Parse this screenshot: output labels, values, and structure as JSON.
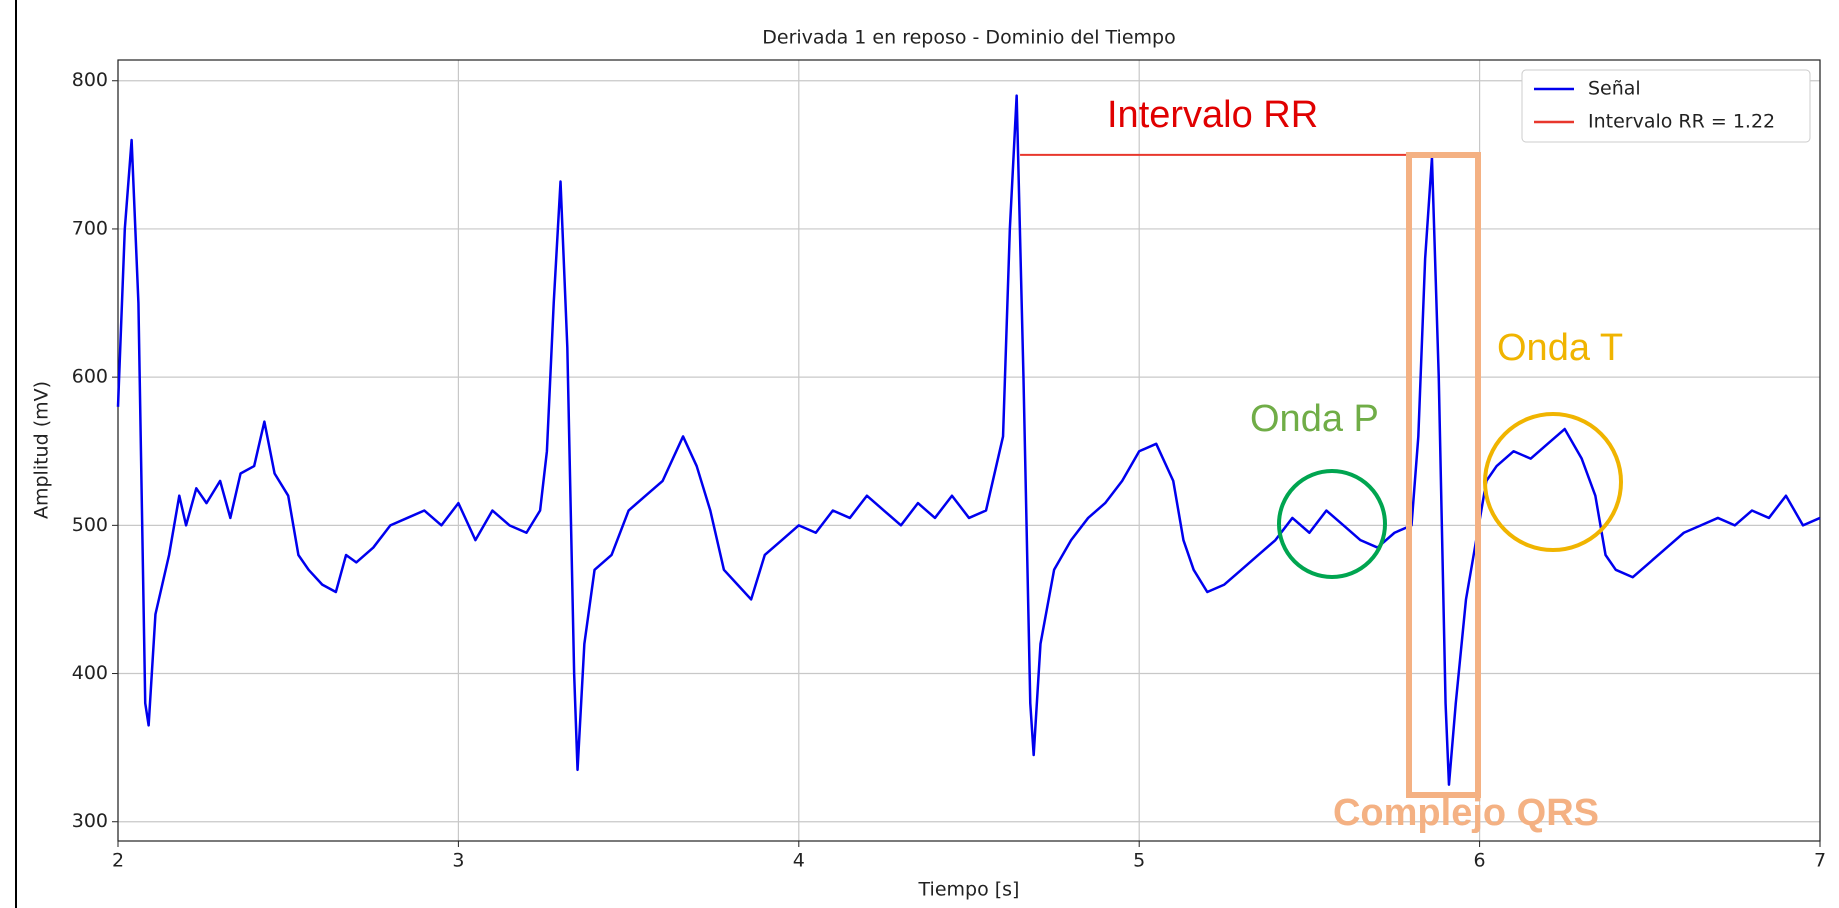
{
  "chart_data": {
    "type": "line",
    "title": "Derivada 1 en reposo - Dominio del Tiempo",
    "xlabel": "Tiempo [s]",
    "ylabel": "Amplitud (mV)",
    "xlim": [
      2,
      7
    ],
    "xticks": [
      2,
      3,
      4,
      5,
      6,
      7
    ],
    "ylim": [
      287,
      814
    ],
    "yticks": [
      300,
      400,
      500,
      600,
      700,
      800
    ],
    "grid": true,
    "legend": "upper right",
    "annotations": [
      "Intervalo RR",
      "Onda P",
      "Onda T",
      "Complejo QRS"
    ],
    "series": [
      {
        "name": "Señal",
        "color": "#0000ee",
        "x": [
          2.0,
          2.02,
          2.04,
          2.06,
          2.08,
          2.09,
          2.11,
          2.13,
          2.15,
          2.18,
          2.2,
          2.23,
          2.26,
          2.3,
          2.33,
          2.36,
          2.4,
          2.43,
          2.46,
          2.5,
          2.53,
          2.56,
          2.6,
          2.64,
          2.67,
          2.7,
          2.75,
          2.8,
          2.85,
          2.9,
          2.95,
          3.0,
          3.05,
          3.1,
          3.15,
          3.2,
          3.24,
          3.26,
          3.28,
          3.3,
          3.32,
          3.34,
          3.35,
          3.37,
          3.4,
          3.45,
          3.5,
          3.55,
          3.6,
          3.63,
          3.66,
          3.7,
          3.74,
          3.78,
          3.82,
          3.86,
          3.9,
          3.95,
          4.0,
          4.05,
          4.1,
          4.15,
          4.2,
          4.25,
          4.3,
          4.35,
          4.4,
          4.45,
          4.5,
          4.55,
          4.6,
          4.62,
          4.64,
          4.66,
          4.68,
          4.69,
          4.71,
          4.75,
          4.8,
          4.85,
          4.9,
          4.95,
          5.0,
          5.05,
          5.1,
          5.13,
          5.16,
          5.2,
          5.25,
          5.3,
          5.35,
          5.4,
          5.45,
          5.5,
          5.55,
          5.6,
          5.65,
          5.7,
          5.75,
          5.8,
          5.82,
          5.84,
          5.86,
          5.88,
          5.9,
          5.91,
          5.93,
          5.96,
          5.99,
          6.02,
          6.05,
          6.1,
          6.15,
          6.2,
          6.25,
          6.3,
          6.34,
          6.37,
          6.4,
          6.45,
          6.5,
          6.55,
          6.6,
          6.65,
          6.7,
          6.75,
          6.8,
          6.85,
          6.9,
          6.95,
          7.0
        ],
        "values": [
          580,
          700,
          760,
          650,
          380,
          365,
          440,
          460,
          480,
          520,
          500,
          525,
          515,
          530,
          505,
          535,
          540,
          570,
          535,
          520,
          480,
          470,
          460,
          455,
          480,
          475,
          485,
          500,
          505,
          510,
          500,
          515,
          490,
          510,
          500,
          495,
          510,
          550,
          650,
          732,
          620,
          400,
          335,
          420,
          470,
          480,
          510,
          520,
          530,
          545,
          560,
          540,
          510,
          470,
          460,
          450,
          480,
          490,
          500,
          495,
          510,
          505,
          520,
          510,
          500,
          515,
          505,
          520,
          505,
          510,
          560,
          700,
          790,
          600,
          380,
          345,
          420,
          470,
          490,
          505,
          515,
          530,
          550,
          555,
          530,
          490,
          470,
          455,
          460,
          470,
          480,
          490,
          505,
          495,
          510,
          500,
          490,
          485,
          495,
          500,
          560,
          680,
          748,
          600,
          380,
          325,
          380,
          450,
          490,
          530,
          540,
          550,
          545,
          555,
          565,
          545,
          520,
          480,
          470,
          465,
          475,
          485,
          495,
          500,
          505,
          500,
          510,
          505,
          520,
          500,
          505
        ]
      },
      {
        "name": "Intervalo RR = 1.22",
        "color": "#e8372c",
        "x": [
          4.65,
          5.87
        ],
        "values": [
          750,
          750
        ]
      }
    ]
  }
}
